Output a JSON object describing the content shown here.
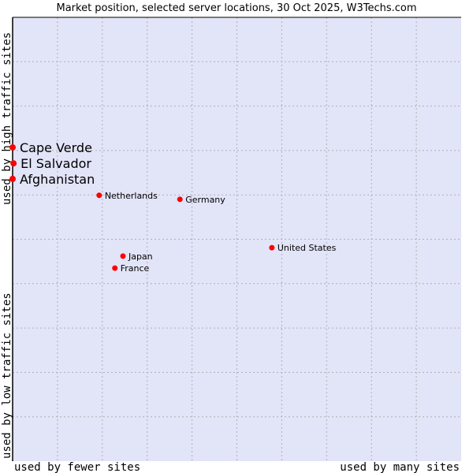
{
  "chart_data": {
    "type": "scatter",
    "title": "Market position, selected server locations, 30 Oct 2025, W3Techs.com",
    "xlabel_left": "used by fewer sites",
    "xlabel_right": "used by many sites",
    "ylabel_bottom": "used by low traffic sites",
    "ylabel_top": "used by high traffic sites",
    "xlim": [
      0,
      100
    ],
    "ylim": [
      0,
      100
    ],
    "grid": true,
    "colors": {
      "background": "#e2e4f8",
      "grid": "#b0b0b0",
      "marker": "#ff0000"
    },
    "points": [
      {
        "label": "Cape Verde",
        "x": 0,
        "y": 70.7,
        "highlight": true
      },
      {
        "label": "El Salvador",
        "x": 0.2,
        "y": 67.1,
        "highlight": true
      },
      {
        "label": "Afghanistan",
        "x": 0,
        "y": 63.6,
        "highlight": true
      },
      {
        "label": "Netherlands",
        "x": 19.3,
        "y": 59.9,
        "highlight": false
      },
      {
        "label": "Germany",
        "x": 37.3,
        "y": 59.0,
        "highlight": false
      },
      {
        "label": "United States",
        "x": 57.8,
        "y": 48.1,
        "highlight": false
      },
      {
        "label": "Japan",
        "x": 24.6,
        "y": 46.2,
        "highlight": false
      },
      {
        "label": "France",
        "x": 22.8,
        "y": 43.5,
        "highlight": false
      }
    ]
  }
}
